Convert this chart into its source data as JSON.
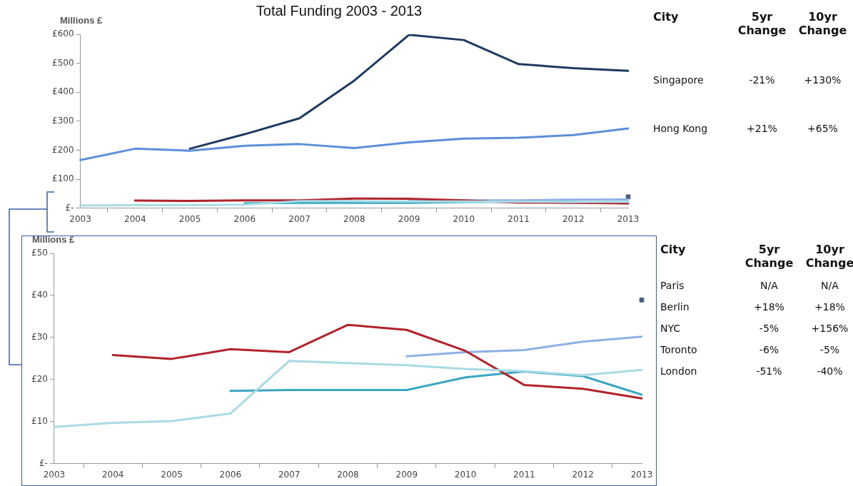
{
  "chart_data": [
    {
      "type": "line",
      "title": "Total Funding 2003 - 2013",
      "ylabel": "Millions £",
      "categories": [
        "2003",
        "2004",
        "2005",
        "2006",
        "2007",
        "2008",
        "2009",
        "2010",
        "2011",
        "2012",
        "2013"
      ],
      "ylim": [
        0,
        600
      ],
      "yticks": [
        {
          "value": 0,
          "label": "£-"
        },
        {
          "value": 100,
          "label": "£100"
        },
        {
          "value": 200,
          "label": "£200"
        },
        {
          "value": 300,
          "label": "£300"
        },
        {
          "value": 400,
          "label": "£400"
        },
        {
          "value": 500,
          "label": "£500"
        },
        {
          "value": 600,
          "label": "£600"
        }
      ],
      "grid": false,
      "legend": false,
      "series": [
        {
          "color": "#a8dbe3",
          "values": [
            9,
            10,
            10,
            12,
            24,
            24,
            23,
            23,
            22,
            21,
            22
          ]
        },
        {
          "color": "#b2222b",
          "values": [
            null,
            26,
            25,
            27,
            27,
            33,
            32,
            27,
            19,
            18,
            16
          ]
        },
        {
          "color": "#8fb0e6",
          "values": [
            null,
            null,
            null,
            null,
            null,
            null,
            26,
            27,
            27,
            29,
            30
          ]
        },
        {
          "color": "#3aa6c0",
          "values": [
            null,
            null,
            null,
            17,
            18,
            18,
            18,
            21,
            22,
            21,
            16
          ]
        },
        {
          "color": "#4a5a7a",
          "marker": "square",
          "values": [
            null,
            null,
            null,
            null,
            null,
            null,
            null,
            null,
            null,
            null,
            39
          ]
        },
        {
          "color": "#5b8fd9",
          "values": [
            166,
            205,
            198,
            215,
            221,
            207,
            227,
            240,
            243,
            252,
            275
          ]
        },
        {
          "color": "#1f3a5f",
          "values": [
            null,
            null,
            205,
            255,
            310,
            440,
            598,
            580,
            497,
            483,
            474
          ]
        }
      ]
    },
    {
      "type": "other",
      "annotations": [
        "City",
        "5yr Change",
        "10yr Change",
        "Singapore",
        "-21%",
        "+130%",
        "Hong Kong",
        "+21%",
        "+65%"
      ]
    },
    {
      "type": "line",
      "ylabel": "Millions £",
      "categories": [
        "2003",
        "2004",
        "2005",
        "2006",
        "2007",
        "2008",
        "2009",
        "2010",
        "2011",
        "2012",
        "2013"
      ],
      "ylim": [
        0,
        50
      ],
      "yticks": [
        {
          "value": 0,
          "label": "£-"
        },
        {
          "value": 10,
          "label": "£10"
        },
        {
          "value": 20,
          "label": "£20"
        },
        {
          "value": 30,
          "label": "£30"
        },
        {
          "value": 40,
          "label": "£40"
        },
        {
          "value": 50,
          "label": "£50"
        }
      ],
      "grid": false,
      "legend": false,
      "series": [
        {
          "color": "#a8dbe3",
          "values": [
            8.7,
            9.7,
            10.1,
            11.9,
            24.4,
            23.9,
            23.4,
            22.5,
            22.0,
            21.0,
            22.3
          ]
        },
        {
          "color": "#b2222b",
          "values": [
            null,
            25.8,
            24.9,
            27.2,
            26.5,
            33,
            31.8,
            26.8,
            18.7,
            17.8,
            15.5
          ]
        },
        {
          "color": "#8fb0e6",
          "values": [
            null,
            null,
            null,
            null,
            null,
            null,
            25.5,
            26.5,
            27.0,
            29.0,
            30.2
          ]
        },
        {
          "color": "#3aa6c0",
          "values": [
            null,
            null,
            null,
            17.3,
            17.5,
            17.5,
            17.5,
            20.5,
            21.9,
            20.8,
            16.4
          ]
        },
        {
          "color": "#4a5a7a",
          "marker": "square",
          "values": [
            null,
            null,
            null,
            null,
            null,
            null,
            null,
            null,
            null,
            null,
            38.9
          ]
        }
      ]
    },
    {
      "type": "other",
      "annotations": [
        "City",
        "5yr Change",
        "10yr Change",
        "Paris",
        "N/A",
        "N/A",
        "Berlin",
        "+18%",
        "+18%",
        "NYC",
        "-5%",
        "+156%",
        "Toronto",
        "-6%",
        "-5%",
        "London",
        "-51%",
        "-40%"
      ]
    }
  ]
}
